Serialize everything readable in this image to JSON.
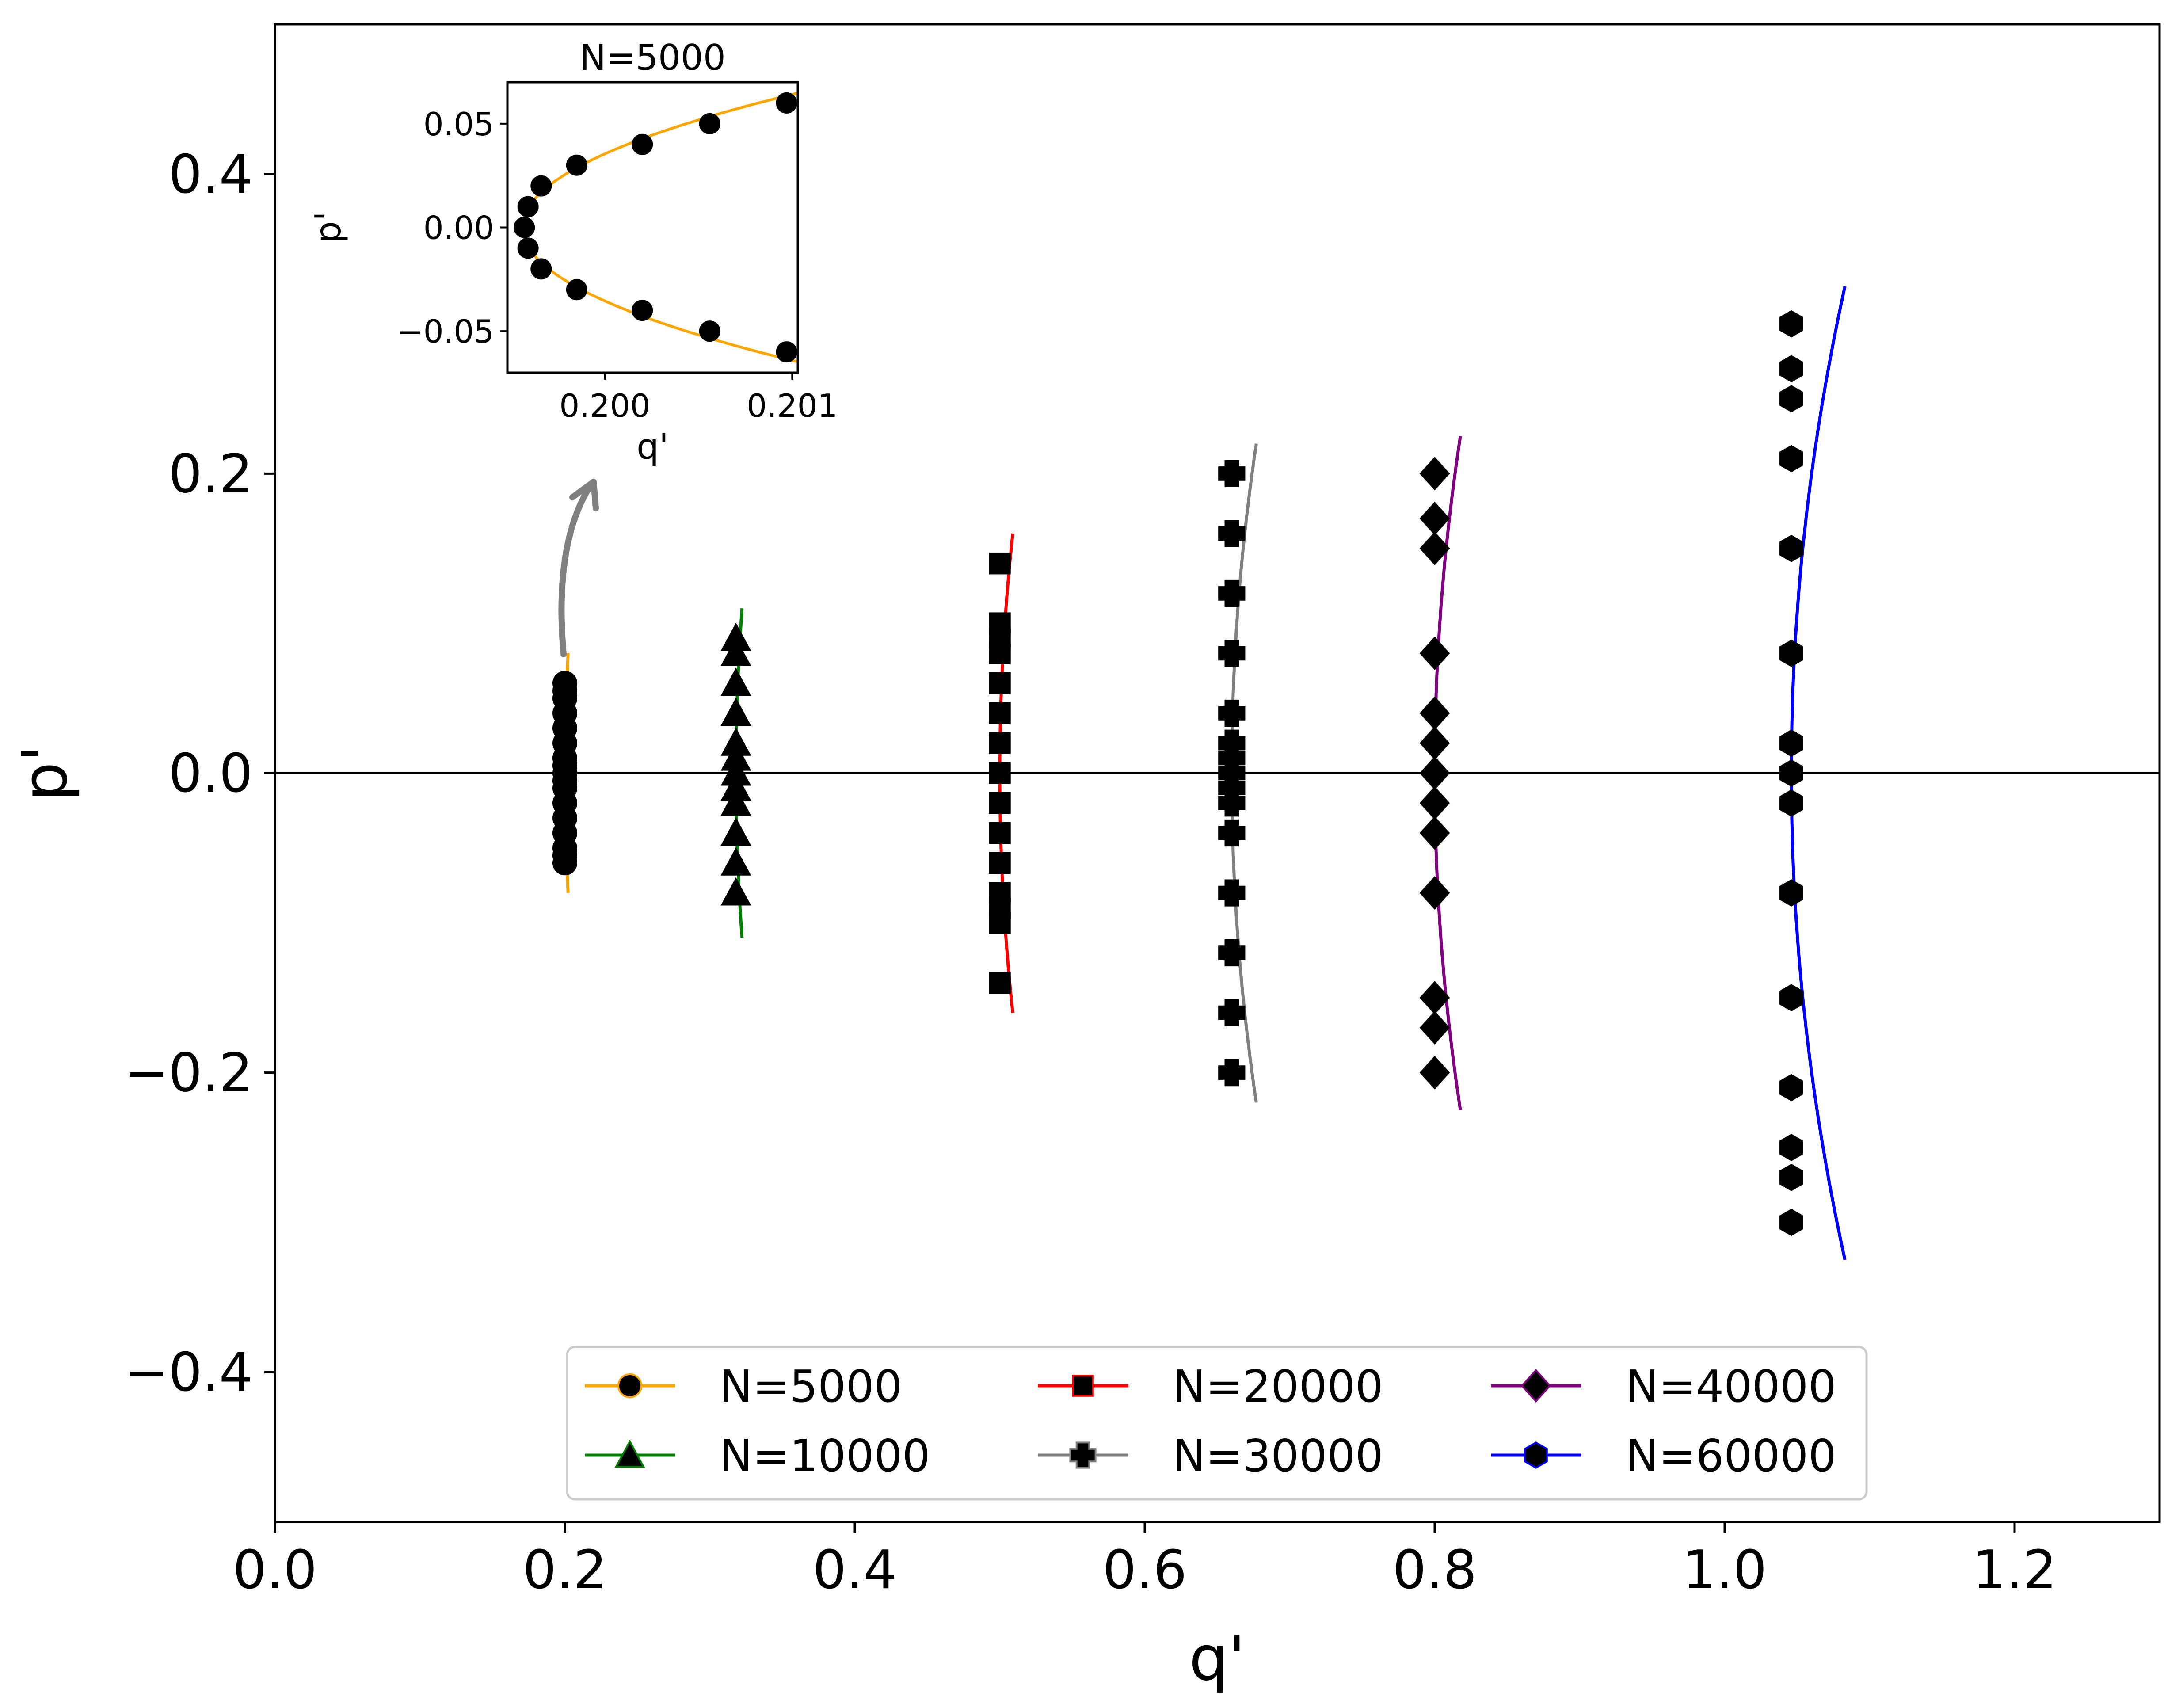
{
  "chart_data": [
    {
      "type": "scatter",
      "title": "",
      "xlabel": "q'",
      "ylabel": "p'",
      "xlim": [
        0.0,
        1.3
      ],
      "ylim": [
        -0.5,
        0.5
      ],
      "xticks": [
        0.0,
        0.2,
        0.4,
        0.6,
        0.8,
        1.0,
        1.2
      ],
      "xtick_labels": [
        "0.0",
        "0.2",
        "0.4",
        "0.6",
        "0.8",
        "1.0",
        "1.2"
      ],
      "yticks": [
        -0.4,
        -0.2,
        0.0,
        0.2,
        0.4
      ],
      "ytick_labels": [
        "−0.4",
        "−0.2",
        "0.0",
        "0.2",
        "0.4"
      ],
      "hline_y": 0.0,
      "legend": {
        "position": "lower-center",
        "columns": 3
      },
      "series": [
        {
          "name": "N=5000",
          "color": "#FFA500",
          "marker": "circle",
          "curve": {
            "q0": 0.2,
            "k": 0.35,
            "p_max": 0.08
          },
          "points": {
            "q": [
              0.2,
              0.2,
              0.2,
              0.2,
              0.2,
              0.2,
              0.2,
              0.2,
              0.2,
              0.2,
              0.2,
              0.2,
              0.2,
              0.2,
              0.2,
              0.2,
              0.2
            ],
            "p": [
              0.06,
              0.05,
              0.04,
              0.03,
              0.02,
              0.01,
              0.005,
              0.0,
              -0.005,
              -0.01,
              -0.02,
              -0.03,
              -0.04,
              -0.05,
              -0.06,
              0.055,
              -0.055
            ]
          }
        },
        {
          "name": "N=10000",
          "color": "#008000",
          "marker": "triangle",
          "curve": {
            "q0": 0.318,
            "k": 0.35,
            "p_max": 0.11
          },
          "points": {
            "q": [
              0.318,
              0.318,
              0.318,
              0.318,
              0.318,
              0.318,
              0.318,
              0.318,
              0.318,
              0.318,
              0.318,
              0.318
            ],
            "p": [
              0.09,
              0.08,
              0.06,
              0.04,
              0.02,
              0.01,
              0.0,
              -0.01,
              -0.02,
              -0.04,
              -0.06,
              -0.08
            ]
          }
        },
        {
          "name": "N=20000",
          "color": "#FF0000",
          "marker": "square",
          "curve": {
            "q0": 0.5,
            "k": 0.35,
            "p_max": 0.16
          },
          "points": {
            "q": [
              0.5,
              0.5,
              0.5,
              0.5,
              0.5,
              0.5,
              0.5,
              0.5,
              0.5,
              0.5,
              0.5,
              0.5,
              0.5,
              0.5,
              0.5
            ],
            "p": [
              0.14,
              0.1,
              0.08,
              0.06,
              0.04,
              0.02,
              0.0,
              -0.02,
              -0.04,
              -0.06,
              -0.08,
              -0.1,
              -0.14,
              0.09,
              -0.09
            ]
          }
        },
        {
          "name": "N=30000",
          "color": "#808080",
          "marker": "plus",
          "curve": {
            "q0": 0.66,
            "k": 0.35,
            "p_max": 0.22
          },
          "points": {
            "q": [
              0.66,
              0.66,
              0.66,
              0.66,
              0.66,
              0.66,
              0.66,
              0.66,
              0.66,
              0.66,
              0.66,
              0.66,
              0.66,
              0.66,
              0.66
            ],
            "p": [
              0.2,
              0.16,
              0.12,
              0.08,
              0.04,
              0.02,
              0.0,
              -0.02,
              -0.04,
              -0.08,
              -0.12,
              -0.16,
              -0.2,
              0.01,
              -0.01
            ]
          }
        },
        {
          "name": "N=40000",
          "color": "#800080",
          "marker": "diamond",
          "curve": {
            "q0": 0.8,
            "k": 0.35,
            "p_max": 0.225
          },
          "points": {
            "q": [
              0.8,
              0.8,
              0.8,
              0.8,
              0.8,
              0.8,
              0.8,
              0.8,
              0.8,
              0.8,
              0.8,
              0.8,
              0.8,
              0.8
            ],
            "p": [
              0.2,
              0.17,
              0.15,
              0.08,
              0.04,
              0.02,
              0.0,
              -0.02,
              -0.04,
              -0.08,
              -0.15,
              -0.17,
              -0.2,
              0.0
            ]
          }
        },
        {
          "name": "N=60000",
          "color": "#0000FF",
          "marker": "hexagon",
          "curve": {
            "q0": 1.046,
            "k": 0.35,
            "p_max": 0.325
          },
          "points": {
            "q": [
              1.046,
              1.046,
              1.046,
              1.046,
              1.046,
              1.046,
              1.046,
              1.046,
              1.046,
              1.046,
              1.046,
              1.046,
              1.046,
              1.046,
              1.046
            ],
            "p": [
              0.3,
              0.27,
              0.25,
              0.21,
              0.15,
              0.08,
              0.02,
              0.0,
              -0.02,
              -0.08,
              -0.15,
              -0.21,
              -0.25,
              -0.27,
              -0.3
            ]
          }
        }
      ]
    },
    {
      "type": "scatter",
      "title": "N=5000",
      "xlabel": "q'",
      "ylabel": "p'",
      "xlim": [
        0.19948,
        0.20103
      ],
      "ylim": [
        -0.07,
        0.07
      ],
      "xticks": [
        0.2,
        0.201
      ],
      "xtick_labels": [
        "0.200",
        "0.201"
      ],
      "yticks": [
        -0.05,
        0.0,
        0.05
      ],
      "ytick_labels": [
        "−0.05",
        "0.00",
        "0.05"
      ],
      "series": [
        {
          "name": "N=5000",
          "color": "#FFA500",
          "marker": "circle",
          "curve": {
            "q0": 0.19956,
            "k": 0.35
          },
          "points": {
            "q": [
              0.19957,
              0.19959,
              0.19959,
              0.19966,
              0.19966,
              0.19985,
              0.19985,
              0.2002,
              0.2002,
              0.20056,
              0.20056,
              0.20097,
              0.20097
            ],
            "p": [
              0.0,
              0.01,
              -0.01,
              0.02,
              -0.02,
              0.03,
              -0.03,
              0.04,
              -0.04,
              0.05,
              -0.05,
              0.06,
              -0.06
            ]
          }
        }
      ]
    }
  ]
}
